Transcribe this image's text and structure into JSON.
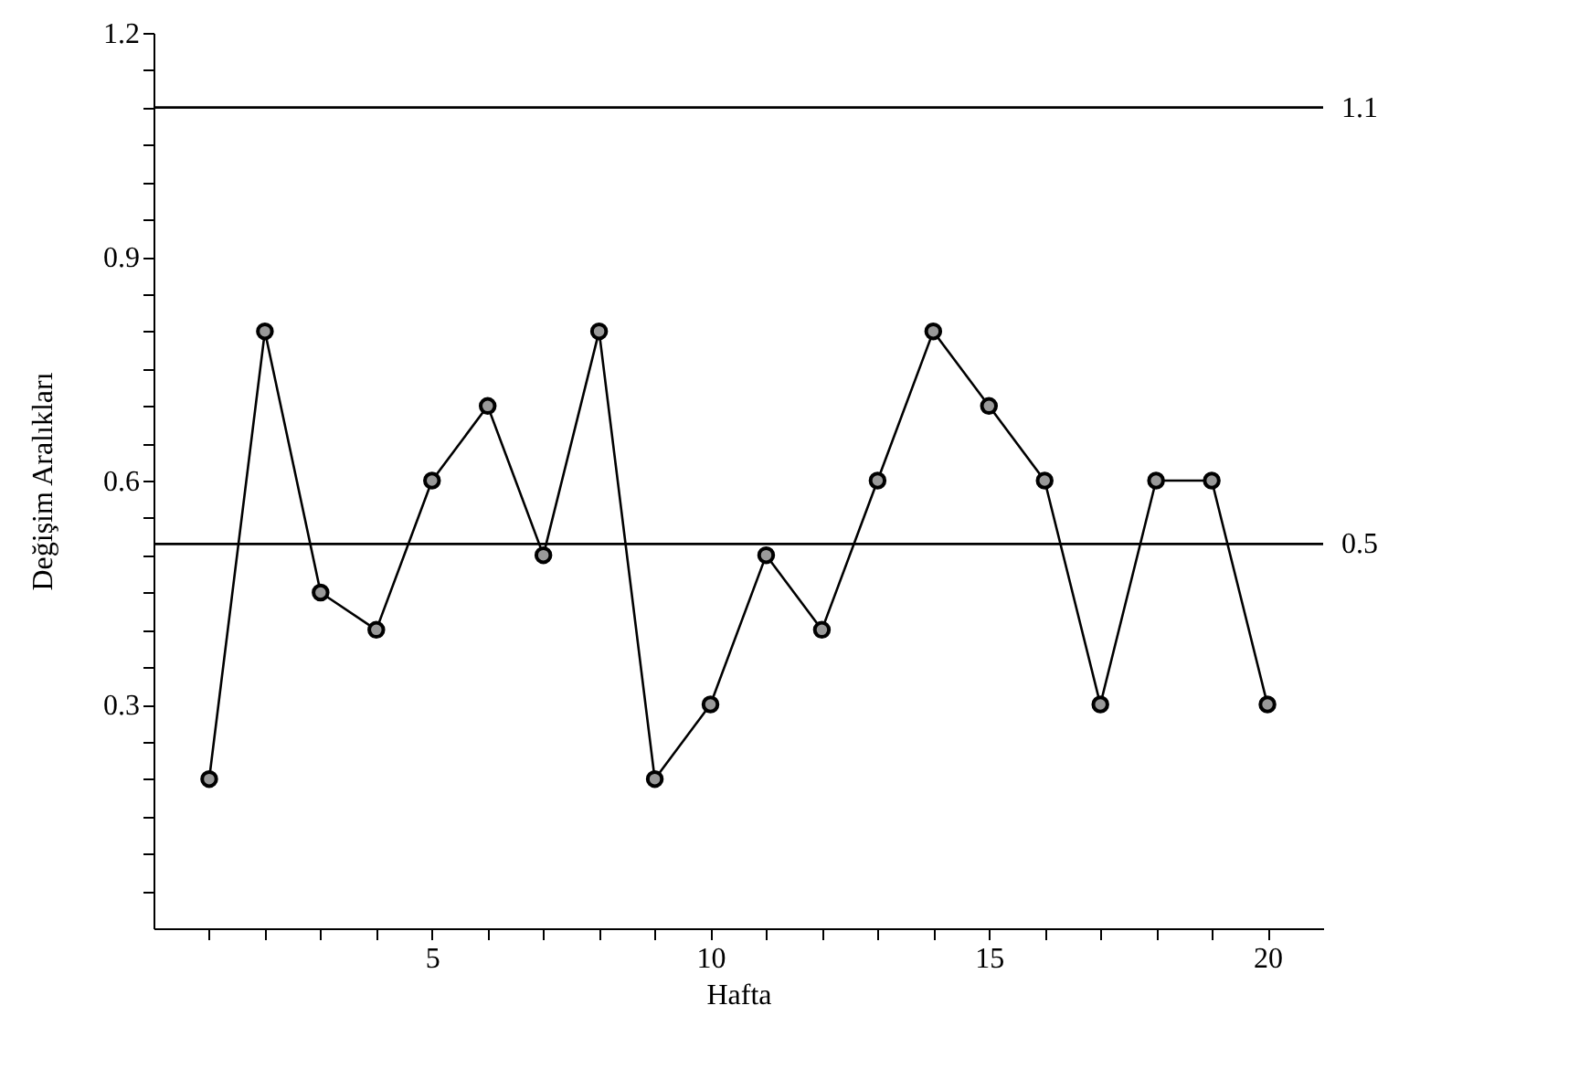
{
  "chart_data": {
    "type": "line",
    "xlabel": "Hafta",
    "ylabel": "Değişim Aralıkları",
    "x": [
      1,
      2,
      3,
      4,
      5,
      6,
      7,
      8,
      9,
      10,
      11,
      12,
      13,
      14,
      15,
      16,
      17,
      18,
      19,
      20
    ],
    "series": [
      {
        "color": "#000000",
        "values": [
          0.2,
          0.8,
          0.45,
          0.4,
          0.6,
          0.7,
          0.5,
          0.8,
          0.2,
          0.3,
          0.5,
          0.4,
          0.6,
          0.8,
          0.7,
          0.6,
          0.3,
          0.6,
          0.6,
          0.3
        ]
      }
    ],
    "xlim": [
      0,
      21
    ],
    "xticks": [
      {
        "value": 1,
        "label": null
      },
      {
        "value": 2,
        "label": null
      },
      {
        "value": 3,
        "label": null
      },
      {
        "value": 4,
        "label": null
      },
      5,
      {
        "value": 6,
        "label": null
      },
      {
        "value": 7,
        "label": null
      },
      {
        "value": 8,
        "label": null
      },
      {
        "value": 9,
        "label": null
      },
      10,
      {
        "value": 11,
        "label": null
      },
      {
        "value": 12,
        "label": null
      },
      {
        "value": 13,
        "label": null
      },
      {
        "value": 14,
        "label": null
      },
      15,
      {
        "value": 16,
        "label": null
      },
      {
        "value": 17,
        "label": null
      },
      {
        "value": 18,
        "label": null
      },
      {
        "value": 19,
        "label": null
      },
      20
    ],
    "ylim": [
      0,
      1.2
    ],
    "yticks": [
      {
        "value": 0.05,
        "label": null
      },
      {
        "value": 0.1,
        "label": null
      },
      {
        "value": 0.15,
        "label": null
      },
      {
        "value": 0.2,
        "label": null
      },
      {
        "value": 0.25,
        "label": null
      },
      0.3,
      {
        "value": 0.35,
        "label": null
      },
      {
        "value": 0.4,
        "label": null
      },
      {
        "value": 0.45,
        "label": null
      },
      {
        "value": 0.5,
        "label": null
      },
      {
        "value": 0.55,
        "label": null
      },
      0.6,
      {
        "value": 0.65,
        "label": null
      },
      {
        "value": 0.7,
        "label": null
      },
      {
        "value": 0.75,
        "label": null
      },
      {
        "value": 0.8,
        "label": null
      },
      {
        "value": 0.85,
        "label": null
      },
      0.9,
      {
        "value": 0.95,
        "label": null
      },
      {
        "value": 1.0,
        "label": null
      },
      {
        "value": 1.05,
        "label": null
      },
      {
        "value": 1.1,
        "label": null
      },
      {
        "value": 1.15,
        "label": null
      },
      1.2
    ],
    "ref_lines": [
      {
        "axis": "y",
        "value": 1.1,
        "label": "1.1",
        "color": "#000000"
      },
      {
        "axis": "y",
        "value": 0.515,
        "label": "0.5",
        "color": "#000000"
      }
    ],
    "marker": "circle",
    "line_style": "solid",
    "grid": false
  }
}
